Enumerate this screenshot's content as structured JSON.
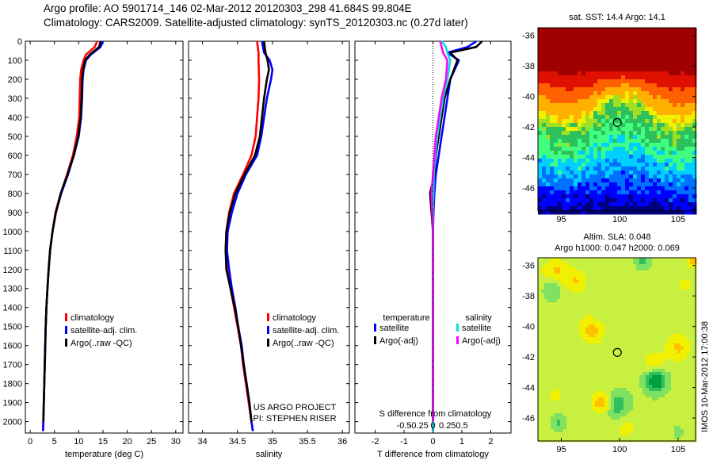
{
  "header": {
    "line1": "Argo profile: AO 5901714_146 02-Mar-2012 20120303_298 41.684S 99.804E",
    "line2": "Climatology: CARS2009. Satellite-adjusted climatology: synTS_20120303.nc (0.27d later)"
  },
  "side_stamp": "IMOS 10-Mar-2012 17:00:38",
  "colors": {
    "climatology": "#ff0000",
    "satellite": "#0000ff",
    "argo": "#000000",
    "satellite_s": "#00e0e0",
    "argo_s": "#ff00ff"
  },
  "chart_data": [
    {
      "id": "temperature",
      "type": "line",
      "xlabel": "temperature (deg C)",
      "ylabel": "",
      "xlim": [
        -1,
        31.5
      ],
      "ylim": [
        2060,
        0
      ],
      "xticks": [
        0,
        5,
        10,
        15,
        20,
        25,
        30
      ],
      "yticks": [
        0,
        100,
        200,
        300,
        400,
        500,
        600,
        700,
        800,
        900,
        1000,
        1100,
        1200,
        1300,
        1400,
        1500,
        1600,
        1700,
        1800,
        1900,
        2000
      ],
      "legend": [
        "climatology",
        "satellite-adj. clim.",
        "Argo(..raw -QC)"
      ],
      "series": [
        {
          "name": "climatology",
          "color": "#ff0000",
          "points": [
            [
              13.8,
              0
            ],
            [
              13.3,
              30
            ],
            [
              11.5,
              70
            ],
            [
              11.0,
              100
            ],
            [
              10.5,
              150
            ],
            [
              10.3,
              200
            ],
            [
              10.2,
              300
            ],
            [
              10.1,
              400
            ],
            [
              9.6,
              500
            ],
            [
              8.8,
              600
            ],
            [
              7.6,
              700
            ],
            [
              6.3,
              800
            ],
            [
              5.2,
              900
            ],
            [
              4.6,
              1000
            ],
            [
              4.1,
              1100
            ],
            [
              3.8,
              1200
            ],
            [
              3.55,
              1300
            ],
            [
              3.35,
              1400
            ],
            [
              3.2,
              1500
            ],
            [
              3.1,
              1600
            ],
            [
              3.0,
              1700
            ],
            [
              2.9,
              1800
            ],
            [
              2.8,
              1900
            ],
            [
              2.7,
              2000
            ],
            [
              2.65,
              2050
            ]
          ]
        },
        {
          "name": "satellite-adj. clim.",
          "color": "#0000ff",
          "points": [
            [
              15.0,
              0
            ],
            [
              14.5,
              30
            ],
            [
              12.5,
              70
            ],
            [
              11.5,
              100
            ],
            [
              11.0,
              150
            ],
            [
              10.8,
              200
            ],
            [
              10.7,
              300
            ],
            [
              10.5,
              400
            ],
            [
              10.0,
              500
            ],
            [
              9.0,
              600
            ],
            [
              7.8,
              700
            ],
            [
              6.4,
              800
            ],
            [
              5.3,
              900
            ],
            [
              4.6,
              1000
            ],
            [
              4.1,
              1100
            ],
            [
              3.8,
              1200
            ],
            [
              3.55,
              1300
            ],
            [
              3.35,
              1400
            ],
            [
              3.2,
              1500
            ],
            [
              3.1,
              1600
            ],
            [
              3.0,
              1700
            ],
            [
              2.9,
              1800
            ],
            [
              2.8,
              1900
            ],
            [
              2.7,
              2000
            ],
            [
              2.65,
              2050
            ]
          ]
        },
        {
          "name": "Argo(..raw -QC)",
          "color": "#000000",
          "points": [
            [
              14.5,
              0
            ],
            [
              14.2,
              30
            ],
            [
              12.3,
              70
            ],
            [
              11.3,
              100
            ],
            [
              10.9,
              150
            ],
            [
              10.7,
              200
            ],
            [
              10.6,
              300
            ],
            [
              10.4,
              400
            ],
            [
              9.9,
              500
            ],
            [
              9.0,
              600
            ],
            [
              7.7,
              700
            ],
            [
              6.3,
              800
            ],
            [
              5.3,
              900
            ],
            [
              4.6,
              1000
            ],
            [
              4.1,
              1100
            ],
            [
              3.8,
              1200
            ],
            [
              3.55,
              1300
            ],
            [
              3.35,
              1400
            ],
            [
              3.2,
              1500
            ],
            [
              3.1,
              1600
            ],
            [
              3.0,
              1700
            ],
            [
              2.9,
              1800
            ],
            [
              2.8,
              1900
            ],
            [
              2.7,
              2000
            ]
          ]
        }
      ]
    },
    {
      "id": "salinity",
      "type": "line",
      "xlabel": "salinity",
      "xlim": [
        33.8,
        36.1
      ],
      "ylim": [
        2060,
        0
      ],
      "xticks": [
        34,
        34.5,
        35,
        35.5,
        36
      ],
      "legend": [
        "climatology",
        "satellite-adj. clim.",
        "Argo(..raw -QC)"
      ],
      "annotation": [
        "US ARGO PROJECT",
        "PI: STEPHEN RISER"
      ],
      "series": [
        {
          "name": "climatology",
          "color": "#ff0000",
          "points": [
            [
              34.78,
              0
            ],
            [
              34.8,
              60
            ],
            [
              34.8,
              100
            ],
            [
              34.81,
              200
            ],
            [
              34.8,
              300
            ],
            [
              34.78,
              400
            ],
            [
              34.76,
              500
            ],
            [
              34.7,
              600
            ],
            [
              34.58,
              700
            ],
            [
              34.45,
              800
            ],
            [
              34.38,
              900
            ],
            [
              34.34,
              1000
            ],
            [
              34.33,
              1100
            ],
            [
              34.35,
              1200
            ],
            [
              34.4,
              1300
            ],
            [
              34.45,
              1400
            ],
            [
              34.5,
              1500
            ],
            [
              34.55,
              1600
            ],
            [
              34.58,
              1700
            ],
            [
              34.62,
              1800
            ],
            [
              34.66,
              1900
            ],
            [
              34.7,
              2000
            ],
            [
              34.72,
              2050
            ]
          ]
        },
        {
          "name": "satellite-adj. clim.",
          "color": "#0000ff",
          "points": [
            [
              34.85,
              0
            ],
            [
              34.88,
              60
            ],
            [
              34.96,
              100
            ],
            [
              35.0,
              150
            ],
            [
              34.98,
              200
            ],
            [
              34.92,
              300
            ],
            [
              34.88,
              400
            ],
            [
              34.84,
              500
            ],
            [
              34.78,
              600
            ],
            [
              34.62,
              700
            ],
            [
              34.5,
              800
            ],
            [
              34.42,
              900
            ],
            [
              34.36,
              1000
            ],
            [
              34.35,
              1100
            ],
            [
              34.38,
              1200
            ],
            [
              34.42,
              1300
            ],
            [
              34.47,
              1400
            ],
            [
              34.51,
              1500
            ],
            [
              34.56,
              1600
            ],
            [
              34.59,
              1700
            ],
            [
              34.63,
              1800
            ],
            [
              34.67,
              1900
            ],
            [
              34.7,
              2000
            ],
            [
              34.72,
              2050
            ]
          ]
        },
        {
          "name": "Argo(..raw -QC)",
          "color": "#000000",
          "points": [
            [
              34.88,
              0
            ],
            [
              34.9,
              60
            ],
            [
              34.93,
              100
            ],
            [
              34.95,
              150
            ],
            [
              34.92,
              200
            ],
            [
              34.88,
              300
            ],
            [
              34.85,
              400
            ],
            [
              34.82,
              500
            ],
            [
              34.75,
              600
            ],
            [
              34.6,
              700
            ],
            [
              34.47,
              800
            ],
            [
              34.39,
              900
            ],
            [
              34.34,
              1000
            ],
            [
              34.33,
              1100
            ],
            [
              34.34,
              1200
            ],
            [
              34.4,
              1300
            ],
            [
              34.46,
              1400
            ],
            [
              34.51,
              1500
            ],
            [
              34.55,
              1600
            ],
            [
              34.59,
              1700
            ],
            [
              34.63,
              1800
            ],
            [
              34.67,
              1900
            ],
            [
              34.7,
              2000
            ]
          ]
        }
      ]
    },
    {
      "id": "difference",
      "type": "line",
      "xlabel": "T difference from climatology",
      "top_label": "S difference from climatology",
      "xlim": [
        -2.7,
        2.7
      ],
      "ylim": [
        2060,
        0
      ],
      "xticks": [
        -2,
        -1,
        0,
        1,
        2
      ],
      "top_ticks": [
        "-0.5",
        "-0.25",
        "0",
        "0.25",
        "0.5"
      ],
      "legend_headings": [
        "temperature",
        "salinity"
      ],
      "legend": [
        "satellite",
        "Argo(-adj)",
        "satellite",
        "Argo(-adj)"
      ],
      "series": [
        {
          "name": "temperature satellite",
          "color": "#0000ff",
          "points": [
            [
              1.5,
              0
            ],
            [
              1.2,
              30
            ],
            [
              0.5,
              60
            ],
            [
              0.9,
              100
            ],
            [
              0.6,
              200
            ],
            [
              0.5,
              300
            ],
            [
              0.4,
              400
            ],
            [
              0.3,
              500
            ],
            [
              0.2,
              600
            ],
            [
              0.1,
              700
            ],
            [
              0.05,
              800
            ],
            [
              0.02,
              900
            ],
            [
              0.0,
              1000
            ],
            [
              0.0,
              2050
            ]
          ]
        },
        {
          "name": "temperature Argo(-adj)",
          "color": "#000000",
          "points": [
            [
              1.7,
              0
            ],
            [
              1.5,
              30
            ],
            [
              0.6,
              60
            ],
            [
              0.85,
              100
            ],
            [
              0.6,
              200
            ],
            [
              0.4,
              300
            ],
            [
              0.3,
              400
            ],
            [
              0.2,
              500
            ],
            [
              0.1,
              600
            ],
            [
              0.05,
              700
            ],
            [
              -0.1,
              800
            ],
            [
              -0.05,
              900
            ],
            [
              0.0,
              1000
            ],
            [
              0.0,
              2000
            ]
          ]
        },
        {
          "name": "salinity satellite",
          "color": "#00e0e0",
          "points": [
            [
              0.3,
              0
            ],
            [
              0.45,
              30
            ],
            [
              0.5,
              60
            ],
            [
              0.6,
              100
            ],
            [
              0.5,
              200
            ],
            [
              0.35,
              300
            ],
            [
              0.25,
              400
            ],
            [
              0.15,
              500
            ],
            [
              0.08,
              600
            ],
            [
              0.03,
              700
            ],
            [
              0.0,
              900
            ],
            [
              0.0,
              2050
            ]
          ]
        },
        {
          "name": "salinity Argo(-adj)",
          "color": "#ff00ff",
          "points": [
            [
              0.25,
              0
            ],
            [
              0.3,
              30
            ],
            [
              0.35,
              60
            ],
            [
              0.5,
              100
            ],
            [
              0.45,
              200
            ],
            [
              0.3,
              300
            ],
            [
              0.2,
              400
            ],
            [
              0.1,
              500
            ],
            [
              0.05,
              600
            ],
            [
              0.0,
              700
            ],
            [
              -0.05,
              800
            ],
            [
              0.0,
              1000
            ],
            [
              0.0,
              2000
            ]
          ]
        }
      ]
    },
    {
      "id": "sst_map",
      "type": "heatmap",
      "title": "sat. SST: 14.4  Argo: 14.1",
      "xlim": [
        93,
        106.5
      ],
      "ylim": [
        -47.5,
        -35.5
      ],
      "xticks": [
        95,
        100,
        105
      ],
      "yticks": [
        -36,
        -38,
        -40,
        -42,
        -44,
        -46
      ],
      "marker": [
        99.8,
        -41.7
      ]
    },
    {
      "id": "sla_map",
      "type": "heatmap",
      "title": "Altim. SLA: 0.048",
      "subtitle": "Argo h1000: 0.047 h2000: 0.069",
      "xlim": [
        93,
        106.5
      ],
      "ylim": [
        -47.5,
        -35.5
      ],
      "xticks": [
        95,
        100,
        105
      ],
      "yticks": [
        -36,
        -38,
        -40,
        -42,
        -44,
        -46
      ],
      "marker": [
        99.8,
        -41.7
      ]
    }
  ]
}
